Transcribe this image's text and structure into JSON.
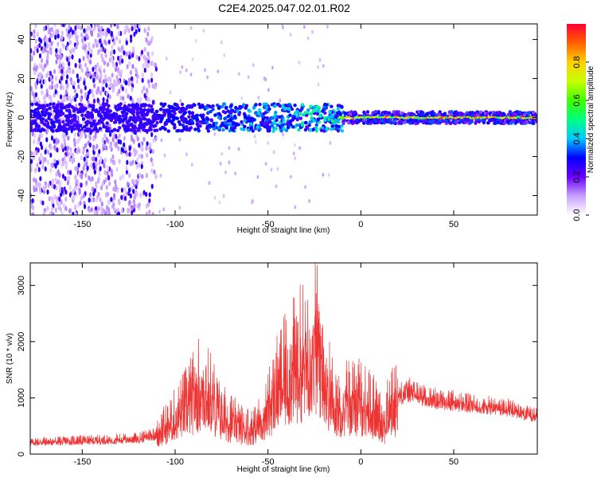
{
  "title": "C2E4.2025.047.02.01.R02",
  "chart_data": [
    {
      "type": "heatmap",
      "xlabel": "Height of straight line (km)",
      "ylabel": "Frequency (Hz)",
      "xlim": [
        -178,
        95
      ],
      "ylim": [
        -50,
        48
      ],
      "xticks": [
        -150,
        -100,
        -50,
        0,
        50
      ],
      "yticks": [
        40,
        20,
        0,
        -20,
        -40
      ],
      "description_of_data": "spectrogram; energy concentrated near 0 Hz across height; broad scatter for heights below -110 km",
      "band_center_hz": 0,
      "colorbar": {
        "label": "Normalized spectral amplitude",
        "range": [
          0.0,
          1.0
        ],
        "ticks": [
          "0.0",
          "0.2",
          "0.4",
          "0.6",
          "0.8"
        ],
        "colors": [
          "#ffffff",
          "#c8a0ff",
          "#6a00ff",
          "#0000ff",
          "#00c8ff",
          "#00ff80",
          "#40ff00",
          "#c8ff00",
          "#ffd000",
          "#ff6000",
          "#ff0030"
        ]
      }
    },
    {
      "type": "line",
      "xlabel": "Height of straight line (km)",
      "ylabel": "SNR (10 * v/v)",
      "xlim": [
        -178,
        95
      ],
      "ylim": [
        0,
        3400
      ],
      "xticks": [
        -150,
        -100,
        -50,
        0,
        50
      ],
      "yticks": [
        0,
        1000,
        2000,
        3000
      ],
      "color": "#ee3333",
      "series": [
        {
          "name": "",
          "x": [
            -178,
            -160,
            -140,
            -120,
            -110,
            -100,
            -95,
            -90,
            -86,
            -83,
            -80,
            -75,
            -70,
            -65,
            -60,
            -55,
            -50,
            -45,
            -40,
            -35,
            -30,
            -28,
            -25,
            -23,
            -20,
            -18,
            -15,
            -12,
            -10,
            -5,
            0,
            5,
            10,
            13,
            15,
            20,
            25,
            30,
            40,
            50,
            60,
            70,
            80,
            95
          ],
          "values": [
            220,
            240,
            260,
            290,
            380,
            700,
            900,
            1100,
            1300,
            1200,
            1050,
            750,
            650,
            550,
            500,
            600,
            900,
            1300,
            1500,
            1700,
            1900,
            2100,
            2200,
            2000,
            1800,
            1300,
            1050,
            900,
            1000,
            1050,
            1000,
            900,
            750,
            550,
            900,
            1050,
            1150,
            1100,
            1000,
            950,
            900,
            860,
            820,
            680
          ]
        }
      ]
    }
  ]
}
